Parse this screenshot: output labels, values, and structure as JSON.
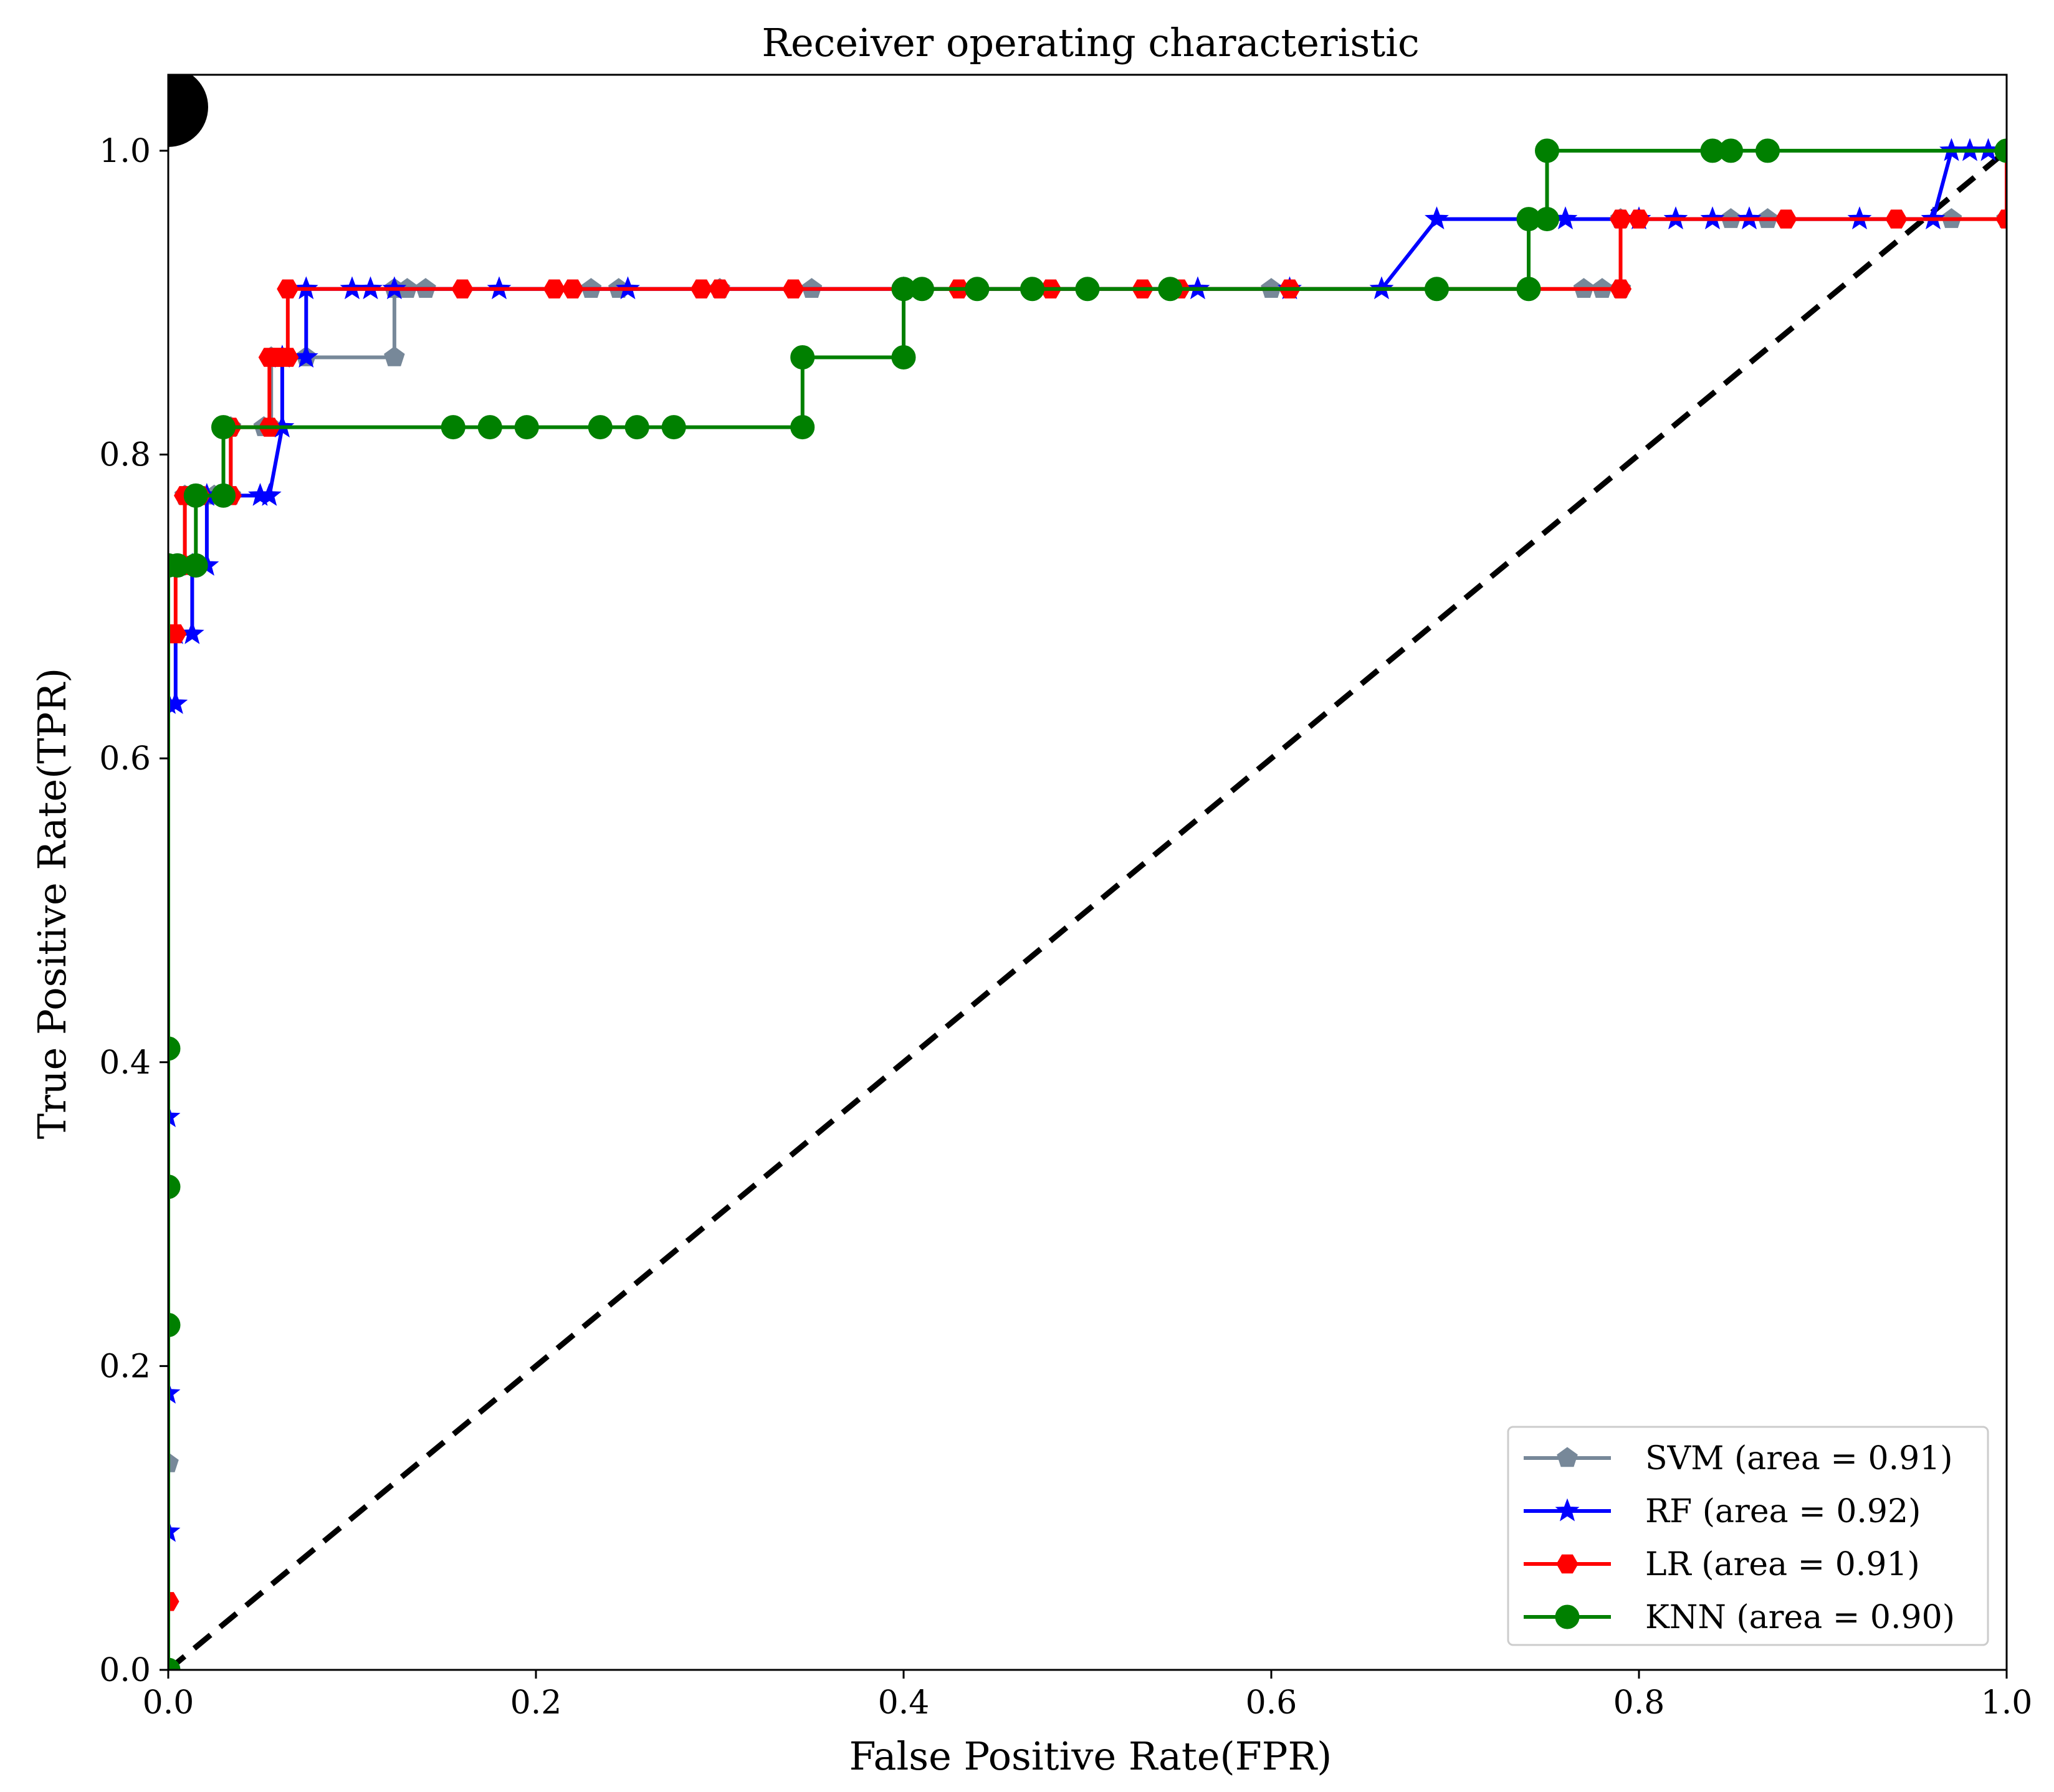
{
  "chart_data": {
    "type": "line",
    "title": "Receiver operating characteristic",
    "xlabel": "False Positive Rate(FPR)",
    "ylabel": "True Positive Rate(TPR)",
    "xlim": [
      0.0,
      1.0
    ],
    "ylim": [
      0.0,
      1.05
    ],
    "xticks": [
      "0.0",
      "0.2",
      "0.4",
      "0.6",
      "0.8",
      "1.0"
    ],
    "yticks": [
      "0.0",
      "0.2",
      "0.4",
      "0.6",
      "0.8",
      "1.0"
    ],
    "xtick_values": [
      0.0,
      0.2,
      0.4,
      0.6,
      0.8,
      1.0
    ],
    "ytick_values": [
      0.0,
      0.2,
      0.4,
      0.6,
      0.8,
      1.0
    ],
    "legend_position": "lower-right",
    "series": [
      {
        "name": "SVM",
        "label": "SVM (area = 0.91)",
        "color": "#778899",
        "marker": "pentagon",
        "x": [
          0.0,
          0.0,
          0.0,
          0.009,
          0.009,
          0.025,
          0.034,
          0.034,
          0.052,
          0.056,
          0.056,
          0.075,
          0.123,
          0.123,
          0.13,
          0.14,
          0.23,
          0.245,
          0.3,
          0.35,
          0.6,
          0.77,
          0.78,
          0.79,
          0.79,
          0.85,
          0.87,
          0.97,
          1.0,
          1.0
        ],
        "y": [
          0.0,
          0.136,
          0.727,
          0.727,
          0.773,
          0.773,
          0.773,
          0.818,
          0.818,
          0.818,
          0.864,
          0.864,
          0.864,
          0.909,
          0.909,
          0.909,
          0.909,
          0.909,
          0.909,
          0.909,
          0.909,
          0.909,
          0.909,
          0.909,
          0.955,
          0.955,
          0.955,
          0.955,
          0.955,
          1.0
        ]
      },
      {
        "name": "RF",
        "label": "RF (area = 0.92)",
        "color": "#0000ff",
        "marker": "star",
        "x": [
          0.0,
          0.0,
          0.0,
          0.0,
          0.0,
          0.004,
          0.004,
          0.013,
          0.013,
          0.021,
          0.021,
          0.05,
          0.055,
          0.062,
          0.062,
          0.075,
          0.075,
          0.1,
          0.11,
          0.123,
          0.18,
          0.25,
          0.4,
          0.56,
          0.61,
          0.66,
          0.69,
          0.76,
          0.8,
          0.82,
          0.84,
          0.86,
          0.92,
          0.96,
          0.97,
          0.98,
          0.99,
          1.0
        ],
        "y": [
          0.0,
          0.091,
          0.182,
          0.364,
          0.636,
          0.636,
          0.682,
          0.682,
          0.727,
          0.727,
          0.773,
          0.773,
          0.773,
          0.818,
          0.864,
          0.864,
          0.909,
          0.909,
          0.909,
          0.909,
          0.909,
          0.909,
          0.909,
          0.909,
          0.909,
          0.909,
          0.955,
          0.955,
          0.955,
          0.955,
          0.955,
          0.955,
          0.955,
          0.955,
          1.0,
          1.0,
          1.0,
          1.0
        ]
      },
      {
        "name": "LR",
        "label": "LR (area = 0.91)",
        "color": "#ff0000",
        "marker": "hexagon",
        "x": [
          0.0,
          0.0,
          0.0,
          0.004,
          0.004,
          0.009,
          0.009,
          0.017,
          0.03,
          0.034,
          0.034,
          0.055,
          0.055,
          0.06,
          0.06,
          0.065,
          0.065,
          0.16,
          0.21,
          0.22,
          0.29,
          0.3,
          0.34,
          0.43,
          0.44,
          0.48,
          0.53,
          0.55,
          0.61,
          0.79,
          0.79,
          0.8,
          0.88,
          0.94,
          1.0,
          1.0
        ],
        "y": [
          0.0,
          0.045,
          0.682,
          0.682,
          0.727,
          0.727,
          0.773,
          0.773,
          0.773,
          0.773,
          0.818,
          0.818,
          0.864,
          0.864,
          0.864,
          0.864,
          0.909,
          0.909,
          0.909,
          0.909,
          0.909,
          0.909,
          0.909,
          0.909,
          0.909,
          0.909,
          0.909,
          0.909,
          0.909,
          0.909,
          0.955,
          0.955,
          0.955,
          0.955,
          0.955,
          1.0
        ]
      },
      {
        "name": "KNN",
        "label": "KNN (area = 0.90)",
        "color": "#008000",
        "marker": "circle",
        "x": [
          0.0,
          0.0,
          0.0,
          0.0,
          0.0,
          0.0,
          0.005,
          0.015,
          0.015,
          0.03,
          0.03,
          0.155,
          0.175,
          0.195,
          0.235,
          0.255,
          0.275,
          0.345,
          0.345,
          0.4,
          0.4,
          0.41,
          0.44,
          0.47,
          0.5,
          0.545,
          0.69,
          0.74,
          0.74,
          0.75,
          0.75,
          0.84,
          0.85,
          0.87,
          1.0
        ],
        "y": [
          0.0,
          0.227,
          0.318,
          0.409,
          0.727,
          0.727,
          0.727,
          0.727,
          0.773,
          0.773,
          0.818,
          0.818,
          0.818,
          0.818,
          0.818,
          0.818,
          0.818,
          0.818,
          0.864,
          0.864,
          0.909,
          0.909,
          0.909,
          0.909,
          0.909,
          0.909,
          0.909,
          0.909,
          0.955,
          0.955,
          1.0,
          1.0,
          1.0,
          1.0,
          1.0
        ]
      }
    ],
    "reference_line": {
      "x": [
        0.0,
        1.0
      ],
      "y": [
        0.0,
        1.0
      ],
      "style": "dashed",
      "color": "#000000"
    }
  }
}
